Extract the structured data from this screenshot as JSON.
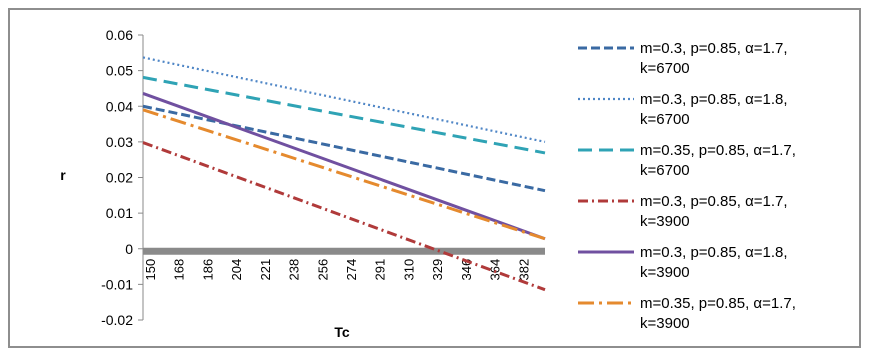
{
  "chart_data": {
    "type": "line",
    "title": "",
    "xlabel": "Tc",
    "ylabel": "r",
    "categories": [
      "150",
      "168",
      "186",
      "204",
      "221",
      "238",
      "256",
      "274",
      "291",
      "310",
      "329",
      "346",
      "364",
      "382"
    ],
    "x_range": [
      150,
      400
    ],
    "ylim": [
      -0.02,
      0.06
    ],
    "yticks": [
      "-0.02",
      "-0.01",
      "0",
      "0.01",
      "0.02",
      "0.03",
      "0.04",
      "0.05",
      "0.06"
    ],
    "grid": false,
    "legend_position": "right",
    "series": [
      {
        "name_line1": "m=0.3, p=0.85, α=1.7,",
        "name_line2": "k=6700",
        "color": "#3a6aa3",
        "dash": "dash",
        "start": 0.04,
        "end": 0.0163
      },
      {
        "name_line1": "m=0.3, p=0.85, α=1.8,",
        "name_line2": "k=6700",
        "color": "#4f86c6",
        "dash": "dot",
        "start": 0.0537,
        "end": 0.03
      },
      {
        "name_line1": "m=0.35, p=0.85, α=1.7,",
        "name_line2": "k=6700",
        "color": "#2fa3b5",
        "dash": "longdash",
        "start": 0.0481,
        "end": 0.0269
      },
      {
        "name_line1": "m=0.3, p=0.85, α=1.7,",
        "name_line2": "k=3900",
        "color": "#b03a3a",
        "dash": "dashdot",
        "start": 0.0298,
        "end": -0.0115
      },
      {
        "name_line1": "m=0.3, p=0.85, α=1.8,",
        "name_line2": "k=3900",
        "color": "#7050a0",
        "dash": "solid",
        "start": 0.0436,
        "end": 0.0028
      },
      {
        "name_line1": "m=0.35, p=0.85, α=1.7,",
        "name_line2": "k=3900",
        "color": "#e58a2e",
        "dash": "longdashdot",
        "start": 0.039,
        "end": 0.0028
      }
    ]
  }
}
